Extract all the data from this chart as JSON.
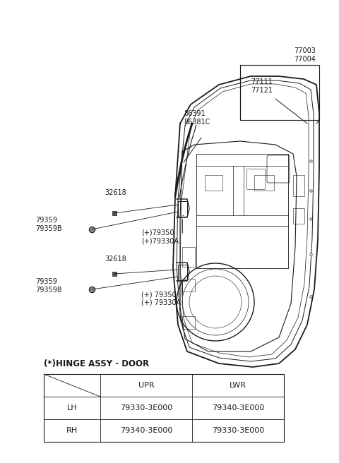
{
  "bg_color": "#ffffff",
  "line_color": "#1a1a1a",
  "title_text": "(*)HINGE ASSY - DOOR",
  "table_headers": [
    "",
    "UPR",
    "LWR"
  ],
  "table_rows": [
    [
      "LH",
      "79330-3E000",
      "79340-3E000"
    ],
    [
      "RH",
      "79340-3E000",
      "79330-3E000"
    ]
  ],
  "labels": {
    "77003_77004": "77003\n77004",
    "77111_77121": "77111\n77121",
    "86391_86381C": "86391\n86381C",
    "32618_u": "32618",
    "79359_u": "79359\n79359B",
    "79350_u": "(+)79350\n(+)79330A",
    "32618_l": "32618",
    "79359_l": "79359\n79359B",
    "79350_l": "(+) 79350\n(+) 79330A"
  }
}
